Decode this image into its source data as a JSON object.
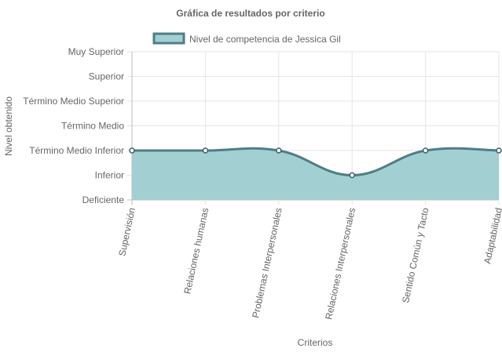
{
  "colors": {
    "fill": "#a2cfd2",
    "line": "#4f7d86",
    "point_fill": "#ffffff",
    "grid": "#e5e5e5",
    "zero_grid": "#bdbdbd",
    "text": "#666666"
  },
  "chart_data": {
    "type": "area",
    "title": "Gráfica de resultados por criterio",
    "xlabel": "Criterios",
    "ylabel": "Nivel obtenido",
    "categories": [
      "Supervisión",
      "Relaciones humanas",
      "Problemas Interpersonales",
      "Relaciones Interpersonales",
      "Sentido Común y Tacto",
      "Adaptabilidad"
    ],
    "y_categories": [
      "Deficiente",
      "Inferior",
      "Término Medio Inferior",
      "Término Medio",
      "Término Medio Superior",
      "Superior",
      "Muy Superior"
    ],
    "ylim": [
      0,
      6
    ],
    "series": [
      {
        "name": "Nivel de competencia de Jessica Gil",
        "values": [
          2,
          2,
          2,
          1,
          2,
          2
        ]
      }
    ],
    "legend_position": "top",
    "grid": true
  }
}
